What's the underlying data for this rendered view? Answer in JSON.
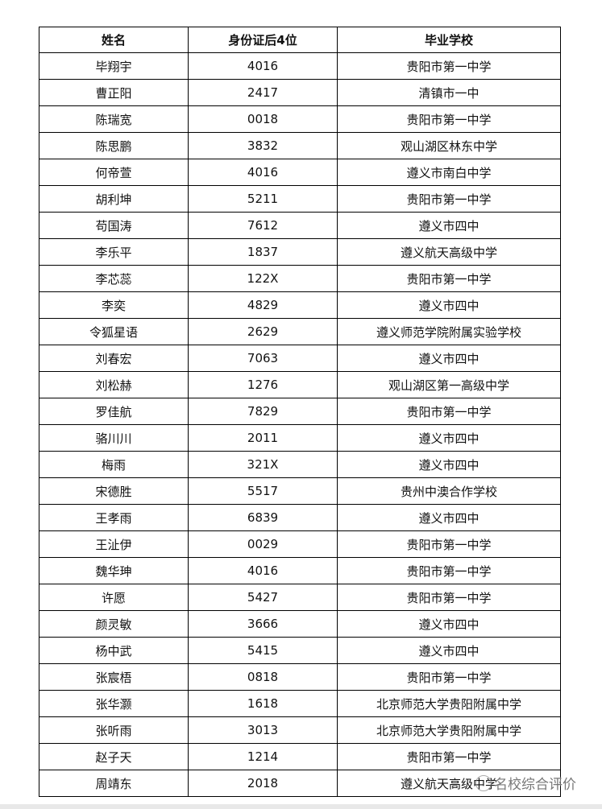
{
  "table": {
    "headers": [
      "姓名",
      "身份证后4位",
      "毕业学校"
    ],
    "rows": [
      [
        "毕翔宇",
        "4016",
        "贵阳市第一中学"
      ],
      [
        "曹正阳",
        "2417",
        "清镇市一中"
      ],
      [
        "陈瑞宽",
        "0018",
        "贵阳市第一中学"
      ],
      [
        "陈思鹏",
        "3832",
        "观山湖区林东中学"
      ],
      [
        "何帝萱",
        "4016",
        "遵义市南白中学"
      ],
      [
        "胡利坤",
        "5211",
        "贵阳市第一中学"
      ],
      [
        "苟国涛",
        "7612",
        "遵义市四中"
      ],
      [
        "李乐平",
        "1837",
        "遵义航天高级中学"
      ],
      [
        "李芯蕊",
        "122X",
        "贵阳市第一中学"
      ],
      [
        "李奕",
        "4829",
        "遵义市四中"
      ],
      [
        "令狐星语",
        "2629",
        "遵义师范学院附属实验学校"
      ],
      [
        "刘春宏",
        "7063",
        "遵义市四中"
      ],
      [
        "刘松赫",
        "1276",
        "观山湖区第一高级中学"
      ],
      [
        "罗佳航",
        "7829",
        "贵阳市第一中学"
      ],
      [
        "骆川川",
        "2011",
        "遵义市四中"
      ],
      [
        "梅雨",
        "321X",
        "遵义市四中"
      ],
      [
        "宋德胜",
        "5517",
        "贵州中澳合作学校"
      ],
      [
        "王孝雨",
        "6839",
        "遵义市四中"
      ],
      [
        "王沚伊",
        "0029",
        "贵阳市第一中学"
      ],
      [
        "魏华珅",
        "4016",
        "贵阳市第一中学"
      ],
      [
        "许愿",
        "5427",
        "贵阳市第一中学"
      ],
      [
        "颜灵敏",
        "3666",
        "遵义市四中"
      ],
      [
        "杨中武",
        "5415",
        "遵义市四中"
      ],
      [
        "张宸梧",
        "0818",
        "贵阳市第一中学"
      ],
      [
        "张华灏",
        "1618",
        "北京师范大学贵阳附属中学"
      ],
      [
        "张听雨",
        "3013",
        "北京师范大学贵阳附属中学"
      ],
      [
        "赵子天",
        "1214",
        "贵阳市第一中学"
      ],
      [
        "周靖东",
        "2018",
        "遵义航天高级中学"
      ]
    ]
  },
  "watermark": {
    "text": "名校综合评价",
    "icon": "wechat-icon"
  }
}
